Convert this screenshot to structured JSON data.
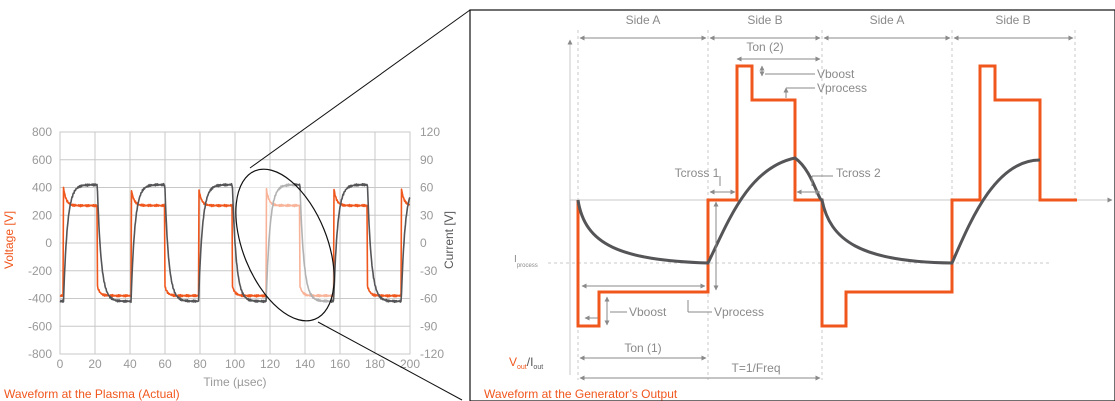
{
  "colors": {
    "orange": "#f0571d",
    "dark": "#555558",
    "grid": "#c8c8c8",
    "annot": "#8a8a8a",
    "black": "#111111"
  },
  "left": {
    "caption": "Waveform at the Plasma (Actual)",
    "xlabel": "Time (µsec)",
    "ylabel_left": "Voltage [V]",
    "ylabel_right": "Current [V]",
    "x_ticks": [
      "0",
      "20",
      "40",
      "60",
      "80",
      "100",
      "120",
      "140",
      "160",
      "180",
      "200"
    ],
    "y_ticks_left": [
      "800",
      "600",
      "400",
      "200",
      "0",
      "-200",
      "-400",
      "-600",
      "-800"
    ],
    "y_ticks_right": [
      "120",
      "90",
      "60",
      "30",
      "0",
      "-30",
      "-60",
      "-90",
      "-120"
    ]
  },
  "chart_data": {
    "type": "line",
    "xlabel": "Time (µsec)",
    "ylabel": "Voltage [V]",
    "y2label": "Current [V]",
    "xlim": [
      0,
      200
    ],
    "ylim": [
      -800,
      800
    ],
    "y2lim": [
      -120,
      120
    ],
    "grid": true,
    "period_usec": 38.6,
    "phase_usec": 2,
    "series": [
      {
        "name": "Voltage [V]",
        "axis": "left",
        "color": "#f0571d",
        "description_values": {
          "side_a_peak": 400,
          "side_a_plateau": 270,
          "side_b_peak": -310,
          "side_b_plateau": -380
        }
      },
      {
        "name": "Current [V]",
        "axis": "right",
        "color": "#555558",
        "description_values": {
          "side_a_max": 63,
          "side_b_min": -63
        }
      }
    ]
  },
  "right": {
    "caption": "Waveform at the Generator’s Output",
    "sides": [
      "Side A",
      "Side B",
      "Side A",
      "Side B"
    ],
    "ton2": "Ton (2)",
    "ton1": "Ton (1)",
    "period": "T=1/Freq",
    "vboost_top": "Vboost",
    "vprocess_top": "Vprocess",
    "vboost_bottom": "Vboost",
    "vprocess_bottom": "Vprocess",
    "tcross1": "Tcross 1",
    "tcross2": "Tcross 2",
    "iprocess": "I",
    "iprocess_sub": "process",
    "axis_v": "V",
    "axis_v_sub": "out",
    "axis_sep": "/I",
    "axis_i_sub": "out"
  }
}
